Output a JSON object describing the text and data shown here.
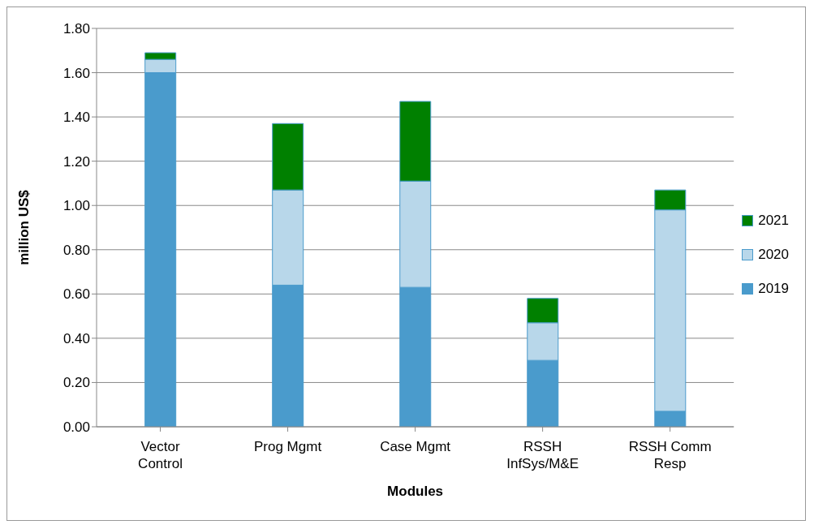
{
  "chart_data": {
    "type": "bar",
    "stacked": true,
    "xlabel": "Modules",
    "ylabel": "million US$",
    "categories": [
      "Vector\nControl",
      "Prog Mgmt",
      "Case Mgmt",
      "RSSH\nInfSys/M&E",
      "RSSH Comm\nResp"
    ],
    "series": [
      {
        "name": "2019",
        "color": "#4a9bcc",
        "values": [
          1.6,
          0.64,
          0.63,
          0.3,
          0.07
        ]
      },
      {
        "name": "2020",
        "color": "#b8d7ea",
        "values": [
          0.06,
          0.43,
          0.48,
          0.17,
          0.91
        ]
      },
      {
        "name": "2021",
        "color": "#008000",
        "values": [
          0.03,
          0.3,
          0.36,
          0.11,
          0.09
        ]
      }
    ],
    "ylim": [
      0,
      1.8
    ],
    "yticks": [
      {
        "value": 0,
        "label": "0.00"
      },
      {
        "value": 0.2,
        "label": "0.20"
      },
      {
        "value": 0.4,
        "label": "0.40"
      },
      {
        "value": 0.6,
        "label": "0.60"
      },
      {
        "value": 0.8,
        "label": "0.80"
      },
      {
        "value": 1,
        "label": "1.00"
      },
      {
        "value": 1.2,
        "label": "1.20"
      },
      {
        "value": 1.4,
        "label": "1.40"
      },
      {
        "value": 1.6,
        "label": "1.60"
      },
      {
        "value": 1.8,
        "label": "1.80"
      }
    ],
    "grid": "y",
    "legend": "right"
  }
}
